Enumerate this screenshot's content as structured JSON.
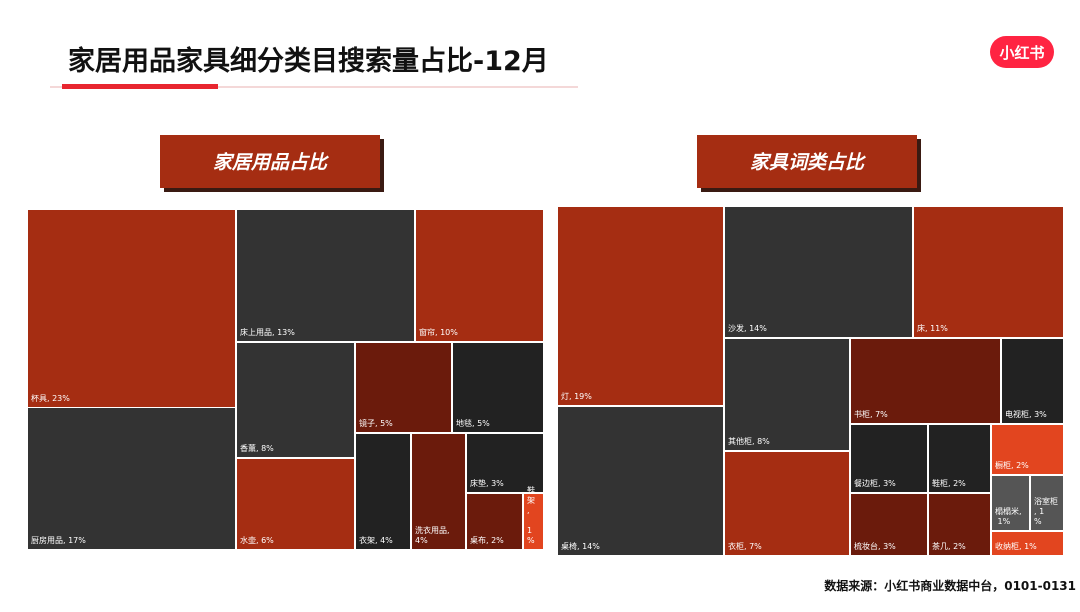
{
  "header": {
    "title": "家居用品家具细分类目搜索量占比-12月",
    "logo": "小红书"
  },
  "chart_data": [
    {
      "type": "treemap",
      "title": "家居用品占比",
      "nodes": [
        {
          "label": "杯具, 23%",
          "value": 23,
          "color": "#a52d12"
        },
        {
          "label": "厨房用品, 17%",
          "value": 17,
          "color": "#333333"
        },
        {
          "label": "床上用品, 13%",
          "value": 13,
          "color": "#333333"
        },
        {
          "label": "窗帘, 10%",
          "value": 10,
          "color": "#a52d12"
        },
        {
          "label": "香薰, 8%",
          "value": 8,
          "color": "#333333"
        },
        {
          "label": "水壶, 6%",
          "value": 6,
          "color": "#a52d12"
        },
        {
          "label": "镜子, 5%",
          "value": 5,
          "color": "#6b1b0c"
        },
        {
          "label": "地毯, 5%",
          "value": 5,
          "color": "#222222"
        },
        {
          "label": "衣架, 4%",
          "value": 4,
          "color": "#222222"
        },
        {
          "label": "洗衣用品, 4%",
          "value": 4,
          "color": "#6b1b0c"
        },
        {
          "label": "床垫, 3%",
          "value": 3,
          "color": "#222222"
        },
        {
          "label": "桌布, 2%",
          "value": 2,
          "color": "#6b1b0c"
        },
        {
          "label": "鞋架, 1%",
          "value": 1,
          "color": "#e2451f"
        }
      ]
    },
    {
      "type": "treemap",
      "title": "家具词类占比",
      "nodes": [
        {
          "label": "灯, 19%",
          "value": 19,
          "color": "#a52d12"
        },
        {
          "label": "桌椅, 14%",
          "value": 14,
          "color": "#333333"
        },
        {
          "label": "沙发, 14%",
          "value": 14,
          "color": "#333333"
        },
        {
          "label": "床, 11%",
          "value": 11,
          "color": "#a52d12"
        },
        {
          "label": "其他柜, 8%",
          "value": 8,
          "color": "#333333"
        },
        {
          "label": "衣柜, 7%",
          "value": 7,
          "color": "#a52d12"
        },
        {
          "label": "书柜, 7%",
          "value": 7,
          "color": "#6b1b0c"
        },
        {
          "label": "电视柜, 3%",
          "value": 3,
          "color": "#222222"
        },
        {
          "label": "餐边柜, 3%",
          "value": 3,
          "color": "#222222"
        },
        {
          "label": "鞋柜, 2%",
          "value": 2,
          "color": "#222222"
        },
        {
          "label": "橱柜, 2%",
          "value": 2,
          "color": "#e2451f"
        },
        {
          "label": "榻榻米, 1%",
          "value": 1,
          "color": "#555555"
        },
        {
          "label": "浴室柜, 1%",
          "value": 1,
          "color": "#555555"
        },
        {
          "label": "梳妆台, 3%",
          "value": 3,
          "color": "#6b1b0c"
        },
        {
          "label": "茶几, 2%",
          "value": 2,
          "color": "#6b1b0c"
        },
        {
          "label": "收纳柜, 1%",
          "value": 1,
          "color": "#e2451f"
        }
      ]
    }
  ],
  "source": "数据来源：小红书商业数据中台，0101-0131"
}
